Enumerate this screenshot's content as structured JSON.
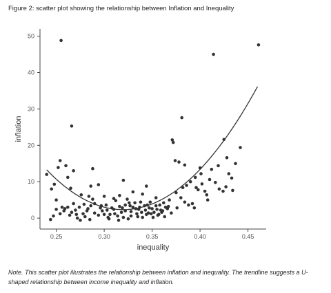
{
  "figure": {
    "title": "Figure 2: scatter plot showing the relationship between Inflation and Inequality",
    "note_lead": "Note.",
    "note_body": "This scatter plot illustrates the relationship between inflation and inequality. The trendline suggests a U-shaped relationship between income inequality and inflation."
  },
  "chart_data": {
    "type": "scatter",
    "xlabel": "inequality",
    "ylabel": "inflation",
    "xlim": [
      0.233,
      0.469
    ],
    "ylim": [
      -3,
      52
    ],
    "xticks": [
      0.25,
      0.3,
      0.35,
      0.4,
      0.45
    ],
    "xtick_labels": [
      "0.25",
      "0.30",
      "0.35",
      "0.40",
      "0.45"
    ],
    "yticks": [
      0,
      10,
      20,
      30,
      40,
      50
    ],
    "ytick_labels": [
      "0",
      "10",
      "20",
      "30",
      "40",
      "50"
    ],
    "grid": false,
    "point_color": "#333333",
    "trend_color": "#333333",
    "trendline": {
      "type": "quadratic",
      "coefficients": [
        1720,
        -1100,
        178.2
      ],
      "x_range": [
        0.24,
        0.46
      ]
    },
    "points": [
      [
        0.255,
        48.8
      ],
      [
        0.414,
        45.0
      ],
      [
        0.461,
        47.6
      ],
      [
        0.266,
        25.3
      ],
      [
        0.381,
        27.6
      ],
      [
        0.371,
        21.5
      ],
      [
        0.372,
        20.8
      ],
      [
        0.425,
        21.6
      ],
      [
        0.24,
        12.0
      ],
      [
        0.252,
        13.9
      ],
      [
        0.254,
        15.8
      ],
      [
        0.26,
        14.4
      ],
      [
        0.262,
        11.2
      ],
      [
        0.268,
        13.0
      ],
      [
        0.265,
        8.2
      ],
      [
        0.245,
        8.0
      ],
      [
        0.248,
        9.3
      ],
      [
        0.288,
        13.6
      ],
      [
        0.294,
        9.2
      ],
      [
        0.286,
        8.8
      ],
      [
        0.32,
        10.4
      ],
      [
        0.374,
        15.8
      ],
      [
        0.378,
        15.4
      ],
      [
        0.384,
        14.6
      ],
      [
        0.395,
        11.2
      ],
      [
        0.401,
        12.2
      ],
      [
        0.4,
        13.8
      ],
      [
        0.412,
        13.4
      ],
      [
        0.419,
        14.4
      ],
      [
        0.428,
        16.6
      ],
      [
        0.43,
        12.2
      ],
      [
        0.437,
        15.0
      ],
      [
        0.442,
        19.4
      ],
      [
        0.433,
        11.0
      ],
      [
        0.386,
        9.0
      ],
      [
        0.382,
        8.4
      ],
      [
        0.39,
        10.0
      ],
      [
        0.396,
        8.4
      ],
      [
        0.398,
        7.8
      ],
      [
        0.402,
        9.4
      ],
      [
        0.405,
        7.4
      ],
      [
        0.407,
        6.4
      ],
      [
        0.408,
        5.0
      ],
      [
        0.41,
        10.6
      ],
      [
        0.416,
        9.8
      ],
      [
        0.42,
        8.0
      ],
      [
        0.424,
        7.4
      ],
      [
        0.427,
        8.6
      ],
      [
        0.434,
        7.6
      ],
      [
        0.375,
        7.0
      ],
      [
        0.38,
        5.6
      ],
      [
        0.384,
        4.4
      ],
      [
        0.388,
        3.6
      ],
      [
        0.392,
        4.0
      ],
      [
        0.394,
        2.8
      ],
      [
        0.368,
        5.0
      ],
      [
        0.364,
        3.0
      ],
      [
        0.359,
        2.2
      ],
      [
        0.354,
        3.4
      ],
      [
        0.35,
        2.6
      ],
      [
        0.346,
        1.4
      ],
      [
        0.342,
        3.4
      ],
      [
        0.338,
        4.4
      ],
      [
        0.334,
        1.2
      ],
      [
        0.33,
        3.0
      ],
      [
        0.326,
        4.2
      ],
      [
        0.322,
        2.0
      ],
      [
        0.318,
        1.6
      ],
      [
        0.314,
        0.6
      ],
      [
        0.31,
        2.4
      ],
      [
        0.306,
        1.0
      ],
      [
        0.302,
        3.6
      ],
      [
        0.298,
        2.0
      ],
      [
        0.294,
        0.8
      ],
      [
        0.29,
        4.0
      ],
      [
        0.286,
        3.4
      ],
      [
        0.282,
        2.0
      ],
      [
        0.278,
        1.2
      ],
      [
        0.274,
        3.0
      ],
      [
        0.27,
        2.2
      ],
      [
        0.266,
        1.6
      ],
      [
        0.262,
        3.0
      ],
      [
        0.258,
        2.0
      ],
      [
        0.254,
        1.2
      ],
      [
        0.25,
        2.4
      ],
      [
        0.247,
        0.6
      ],
      [
        0.244,
        -0.4
      ],
      [
        0.256,
        3.0
      ],
      [
        0.264,
        0.8
      ],
      [
        0.272,
        0.0
      ],
      [
        0.28,
        0.4
      ],
      [
        0.288,
        5.2
      ],
      [
        0.296,
        2.8
      ],
      [
        0.304,
        0.2
      ],
      [
        0.312,
        4.8
      ],
      [
        0.316,
        3.2
      ],
      [
        0.32,
        0.2
      ],
      [
        0.324,
        5.2
      ],
      [
        0.328,
        1.8
      ],
      [
        0.332,
        4.2
      ],
      [
        0.336,
        2.4
      ],
      [
        0.34,
        0.2
      ],
      [
        0.344,
        1.0
      ],
      [
        0.348,
        4.4
      ],
      [
        0.352,
        1.6
      ],
      [
        0.356,
        0.8
      ],
      [
        0.36,
        1.6
      ],
      [
        0.358,
        3.6
      ],
      [
        0.362,
        4.2
      ],
      [
        0.366,
        2.6
      ],
      [
        0.34,
        6.6
      ],
      [
        0.316,
        6.2
      ],
      [
        0.31,
        5.4
      ],
      [
        0.3,
        6.0
      ],
      [
        0.284,
        6.0
      ],
      [
        0.276,
        6.4
      ],
      [
        0.268,
        4.0
      ],
      [
        0.25,
        5.0
      ],
      [
        0.33,
        7.2
      ],
      [
        0.344,
        8.8
      ],
      [
        0.354,
        5.6
      ],
      [
        0.335,
        0.4
      ],
      [
        0.325,
        -0.2
      ],
      [
        0.315,
        -0.6
      ],
      [
        0.305,
        -0.2
      ],
      [
        0.285,
        -0.4
      ],
      [
        0.275,
        -0.6
      ],
      [
        0.3,
        1.0
      ],
      [
        0.308,
        2.8
      ],
      [
        0.322,
        3.6
      ],
      [
        0.328,
        0.6
      ],
      [
        0.337,
        3.0
      ],
      [
        0.343,
        2.2
      ],
      [
        0.347,
        2.8
      ],
      [
        0.351,
        0.2
      ],
      [
        0.357,
        1.0
      ],
      [
        0.363,
        0.4
      ],
      [
        0.37,
        1.4
      ],
      [
        0.376,
        2.8
      ],
      [
        0.283,
        2.6
      ],
      [
        0.279,
        3.8
      ],
      [
        0.271,
        1.0
      ],
      [
        0.259,
        2.6
      ],
      [
        0.29,
        1.4
      ],
      [
        0.297,
        3.4
      ],
      [
        0.303,
        2.2
      ],
      [
        0.311,
        1.2
      ],
      [
        0.319,
        2.8
      ],
      [
        0.327,
        3.4
      ],
      [
        0.333,
        2.6
      ],
      [
        0.339,
        1.6
      ],
      [
        0.345,
        3.6
      ],
      [
        0.349,
        1.2
      ],
      [
        0.355,
        2.4
      ],
      [
        0.361,
        2.0
      ],
      [
        0.367,
        3.2
      ]
    ]
  }
}
